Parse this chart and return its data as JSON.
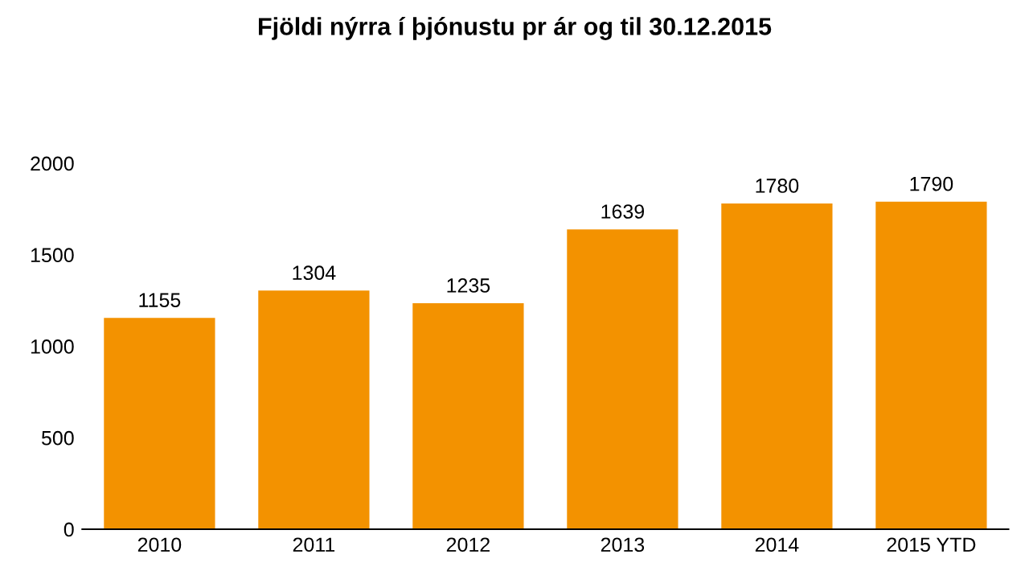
{
  "chart_data": {
    "type": "bar",
    "title": "Fjöldi nýrra í þjónustu pr ár og til 30.12.2015",
    "categories": [
      "2010",
      "2011",
      "2012",
      "2013",
      "2014",
      "2015 YTD"
    ],
    "values": [
      1155,
      1304,
      1235,
      1639,
      1780,
      1790
    ],
    "color": "#f39200",
    "ylim": [
      0,
      2000
    ],
    "yticks": [
      0,
      500,
      1000,
      1500,
      2000
    ],
    "grid": false,
    "data_labels": true
  }
}
